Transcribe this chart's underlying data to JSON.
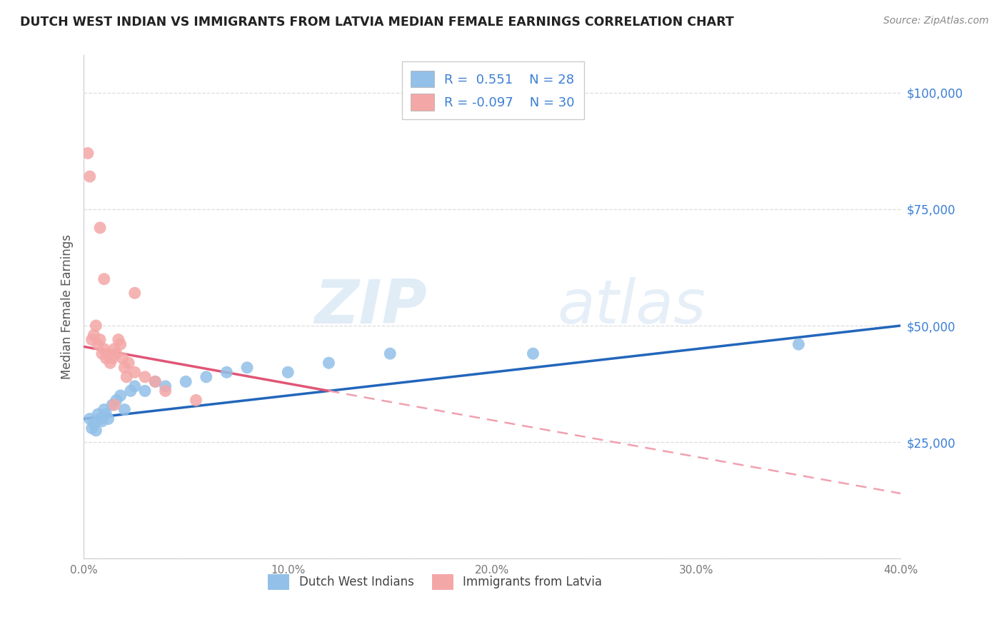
{
  "title": "DUTCH WEST INDIAN VS IMMIGRANTS FROM LATVIA MEDIAN FEMALE EARNINGS CORRELATION CHART",
  "source": "Source: ZipAtlas.com",
  "ylabel": "Median Female Earnings",
  "yticks": [
    0,
    25000,
    50000,
    75000,
    100000
  ],
  "ytick_labels": [
    "",
    "$25,000",
    "$50,000",
    "$75,000",
    "$100,000"
  ],
  "xmin": 0.0,
  "xmax": 40.0,
  "ymin": 0,
  "ymax": 108000,
  "blue_R": 0.551,
  "blue_N": 28,
  "pink_R": -0.097,
  "pink_N": 30,
  "blue_color": "#92c0e8",
  "pink_color": "#f4a7a7",
  "blue_line_color": "#2266bb",
  "pink_line_color": "#e05575",
  "pink_dash_color": "#f0a0b0",
  "legend_label_blue": "Dutch West Indians",
  "legend_label_pink": "Immigrants from Latvia",
  "watermark_zip": "ZIP",
  "watermark_atlas": "atlas",
  "blue_scatter_x": [
    0.3,
    0.4,
    0.5,
    0.6,
    0.7,
    0.8,
    0.9,
    1.0,
    1.1,
    1.2,
    1.4,
    1.6,
    1.8,
    2.0,
    2.3,
    2.5,
    3.0,
    3.5,
    4.0,
    5.0,
    6.0,
    7.0,
    8.0,
    10.0,
    12.0,
    15.0,
    22.0,
    35.0
  ],
  "blue_scatter_y": [
    30000,
    28000,
    29000,
    27500,
    31000,
    30000,
    29500,
    32000,
    31000,
    30000,
    33000,
    34000,
    35000,
    32000,
    36000,
    37000,
    36000,
    38000,
    37000,
    38000,
    39000,
    40000,
    41000,
    40000,
    42000,
    44000,
    44000,
    46000
  ],
  "pink_scatter_x": [
    0.2,
    0.3,
    0.4,
    0.5,
    0.6,
    0.7,
    0.8,
    0.9,
    1.0,
    1.1,
    1.2,
    1.3,
    1.4,
    1.5,
    1.6,
    1.7,
    1.8,
    1.9,
    2.0,
    2.1,
    2.2,
    2.5,
    3.0,
    3.5,
    4.0,
    5.5,
    0.8,
    1.0,
    2.5,
    1.5
  ],
  "pink_scatter_y": [
    87000,
    82000,
    47000,
    48000,
    50000,
    46000,
    47000,
    44000,
    45000,
    43000,
    44000,
    42000,
    43000,
    45000,
    44000,
    47000,
    46000,
    43000,
    41000,
    39000,
    42000,
    40000,
    39000,
    38000,
    36000,
    34000,
    71000,
    60000,
    57000,
    33000
  ],
  "blue_line_x0": 0.0,
  "blue_line_x1": 40.0,
  "blue_line_y0": 30000,
  "blue_line_y1": 50000,
  "pink_solid_x0": 0.0,
  "pink_solid_x1": 12.0,
  "pink_solid_y0": 45500,
  "pink_solid_y1": 36000,
  "pink_dash_x0": 12.0,
  "pink_dash_x1": 40.0,
  "pink_dash_y0": 36000,
  "pink_dash_y1": 14000
}
